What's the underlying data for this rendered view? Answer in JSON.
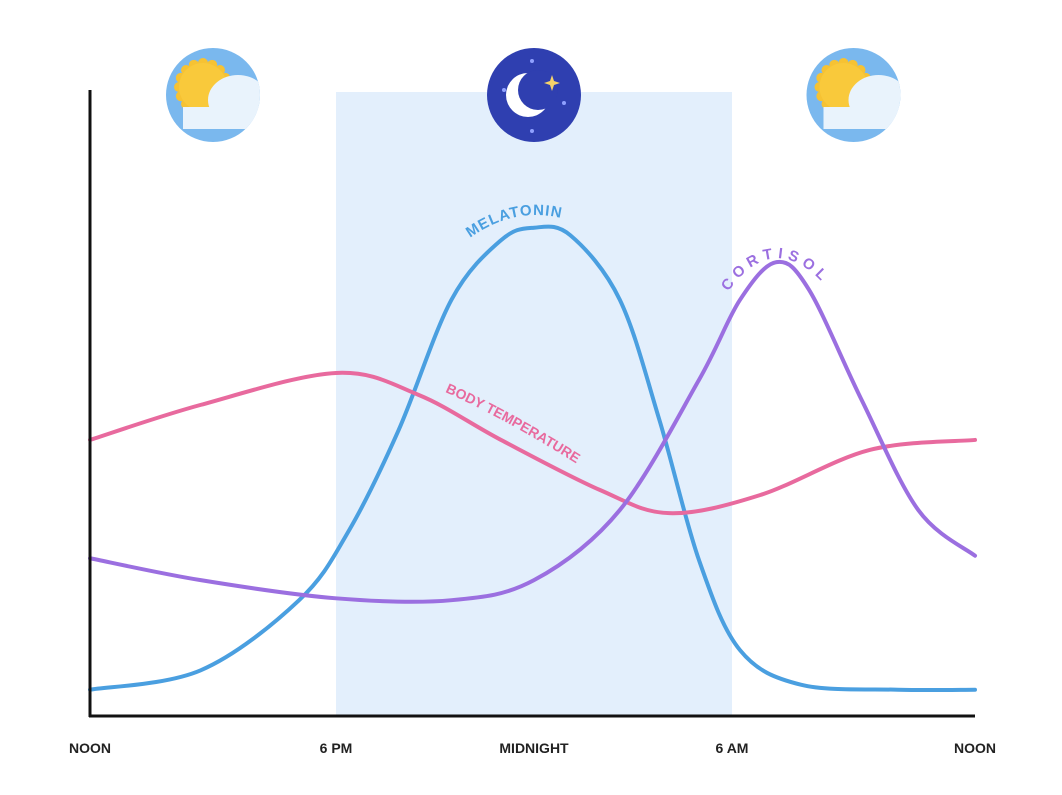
{
  "chart_data": {
    "type": "line",
    "title": "",
    "xlabel": "",
    "ylabel": "",
    "x_unit": "hours after noon",
    "xlim": [
      0,
      24
    ],
    "ylim": [
      0,
      100
    ],
    "grid": false,
    "x_ticks": [
      {
        "x": 0,
        "label": "NOON"
      },
      {
        "x": 6,
        "label": "6 PM"
      },
      {
        "x": 12,
        "label": "MIDNIGHT"
      },
      {
        "x": 18,
        "label": "6 AM"
      },
      {
        "x": 24,
        "label": "NOON"
      }
    ],
    "night_band": {
      "from": 6,
      "to": 18,
      "color": "#e3effc"
    },
    "icons": [
      {
        "x": 3,
        "name": "sun-cloud-icon"
      },
      {
        "x": 12,
        "name": "moon-stars-icon"
      },
      {
        "x": 21,
        "name": "sun-cloud-icon"
      }
    ],
    "series": [
      {
        "name": "MELATONIN",
        "color": "#4a9fe0",
        "x": [
          0,
          2.7,
          5.1,
          6.4,
          7.9,
          9.5,
          11.0,
          12.0,
          13.1,
          14.6,
          15.8,
          17.0,
          18.2,
          19.7,
          22.1,
          24
        ],
        "y": [
          4.2,
          7.3,
          18.5,
          29.7,
          45.7,
          66.5,
          76,
          78,
          76.8,
          66.5,
          47.3,
          24.9,
          10.5,
          5,
          4.2,
          4.2
        ]
      },
      {
        "name": "BODY TEMPERATURE",
        "color": "#e86a9e",
        "x": [
          0,
          2.7,
          6,
          8.5,
          11,
          14,
          16.1,
          18.7,
          21.4,
          24
        ],
        "y": [
          44.1,
          49.7,
          54.8,
          51.3,
          44.1,
          36.1,
          32.4,
          35.3,
          42.5,
          44.1
        ]
      },
      {
        "name": "CORTISOL",
        "color": "#9b6fe0",
        "x": [
          0,
          2.7,
          6,
          9.5,
          12,
          14.6,
          17.0,
          18.2,
          19.1,
          19.9,
          21.2,
          22.6,
          24
        ],
        "y": [
          25.2,
          21.7,
          18.8,
          18.5,
          21.7,
          32.9,
          53.7,
          66.5,
          72.5,
          68.1,
          50.5,
          32.9,
          25.6
        ]
      }
    ]
  }
}
